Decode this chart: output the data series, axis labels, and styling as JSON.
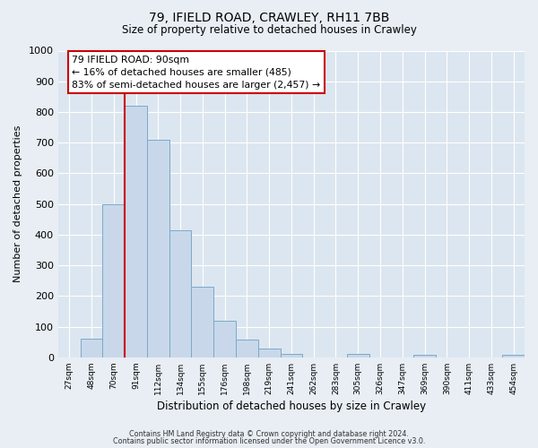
{
  "title": "79, IFIELD ROAD, CRAWLEY, RH11 7BB",
  "subtitle": "Size of property relative to detached houses in Crawley",
  "xlabel": "Distribution of detached houses by size in Crawley",
  "ylabel": "Number of detached properties",
  "bar_color": "#c8d8ea",
  "bar_edge_color": "#7aaac8",
  "background_color": "#e8eef4",
  "plot_bg_color": "#dce6f0",
  "tick_labels": [
    "27sqm",
    "48sqm",
    "70sqm",
    "91sqm",
    "112sqm",
    "134sqm",
    "155sqm",
    "176sqm",
    "198sqm",
    "219sqm",
    "241sqm",
    "262sqm",
    "283sqm",
    "305sqm",
    "326sqm",
    "347sqm",
    "369sqm",
    "390sqm",
    "411sqm",
    "433sqm",
    "454sqm"
  ],
  "bar_values": [
    0,
    60,
    500,
    820,
    710,
    415,
    230,
    118,
    58,
    30,
    12,
    0,
    0,
    12,
    0,
    0,
    8,
    0,
    0,
    0,
    8
  ],
  "ylim": [
    0,
    1000
  ],
  "yticks": [
    0,
    100,
    200,
    300,
    400,
    500,
    600,
    700,
    800,
    900,
    1000
  ],
  "vline_x_index": 3,
  "vline_color": "#cc0000",
  "annotation_line1": "79 IFIELD ROAD: 90sqm",
  "annotation_line2": "← 16% of detached houses are smaller (485)",
  "annotation_line3": "83% of semi-detached houses are larger (2,457) →",
  "annotation_box_color": "#ffffff",
  "annotation_box_edge": "#cc0000",
  "footer1": "Contains HM Land Registry data © Crown copyright and database right 2024.",
  "footer2": "Contains public sector information licensed under the Open Government Licence v3.0."
}
